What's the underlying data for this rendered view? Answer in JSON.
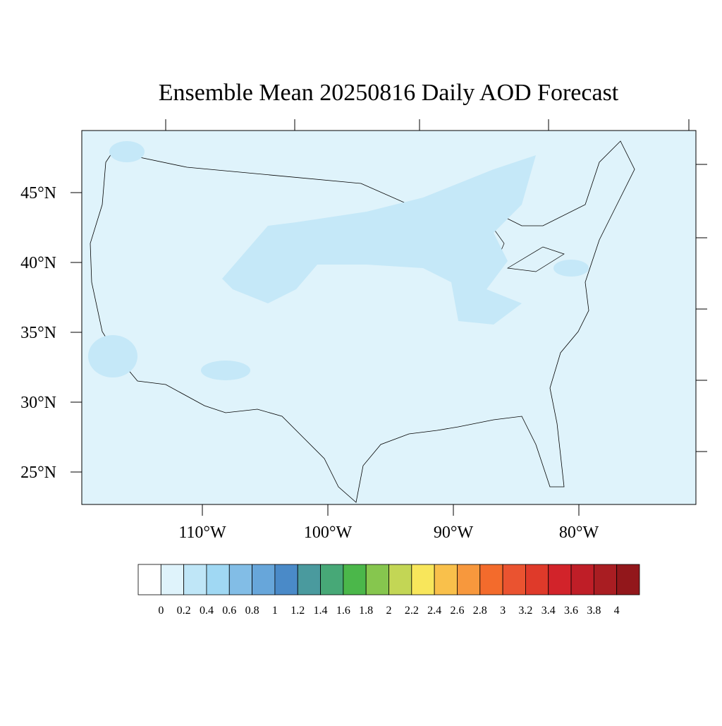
{
  "title": "Ensemble Mean 20250816 Daily AOD Forecast",
  "map": {
    "lat_ticks": [
      {
        "value": 45,
        "label": "45°N"
      },
      {
        "value": 40,
        "label": "40°N"
      },
      {
        "value": 35,
        "label": "35°N"
      },
      {
        "value": 30,
        "label": "30°N"
      },
      {
        "value": 25,
        "label": "25°N"
      }
    ],
    "lon_ticks": [
      {
        "value": -110,
        "label": "110°W"
      },
      {
        "value": -100,
        "label": "100°W"
      },
      {
        "value": -90,
        "label": "90°W"
      },
      {
        "value": -80,
        "label": "80°W"
      }
    ]
  },
  "colorbar": {
    "levels": [
      0,
      0.2,
      0.4,
      0.6,
      0.8,
      1,
      1.2,
      1.4,
      1.6,
      1.8,
      2,
      2.2,
      2.4,
      2.6,
      2.8,
      3,
      3.2,
      3.4,
      3.6,
      3.8,
      4
    ],
    "colors": [
      "#ffffff",
      "#dff3fb",
      "#bfe6f7",
      "#a0d8f3",
      "#82bde6",
      "#67a6da",
      "#4a8ac8",
      "#4a9a9e",
      "#47a877",
      "#4bb74a",
      "#86c64e",
      "#c3d655",
      "#f8e65b",
      "#f9c04b",
      "#f7983d",
      "#f36b2c",
      "#ea5330",
      "#df3a2a",
      "#d2232a",
      "#bf1e27",
      "#a91d22",
      "#92171b"
    ]
  }
}
